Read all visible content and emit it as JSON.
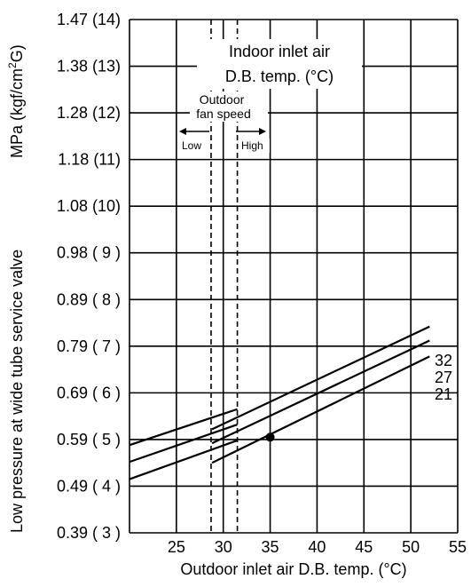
{
  "chart_data": {
    "type": "line",
    "ylabel": "Low pressure at wide tube service valve",
    "ylabel_unit_prefix": "MPa (kgf/cm",
    "ylabel_unit_superscript": "2",
    "ylabel_unit_suffix": "G)",
    "xlabel": "Outdoor inlet air D.B. temp. (°C)",
    "xlim": [
      20,
      55
    ],
    "ylim": [
      3,
      14
    ],
    "x_ticks": [
      25,
      30,
      35,
      40,
      45,
      50,
      55
    ],
    "y_ticks": [
      {
        "value": 3,
        "label": "0.39 ( 3 )"
      },
      {
        "value": 4,
        "label": "0.49 ( 4 )"
      },
      {
        "value": 5,
        "label": "0.59 ( 5 )"
      },
      {
        "value": 6,
        "label": "0.69 ( 6 )"
      },
      {
        "value": 7,
        "label": "0.79 ( 7 )"
      },
      {
        "value": 8,
        "label": "0.89 ( 8 )"
      },
      {
        "value": 9,
        "label": "0.98 ( 9 )"
      },
      {
        "value": 10,
        "label": "1.08 (10)"
      },
      {
        "value": 11,
        "label": "1.18 (11)"
      },
      {
        "value": 12,
        "label": "1.28 (12)"
      },
      {
        "value": 13,
        "label": "1.38 (13)"
      },
      {
        "value": 14,
        "label": "1.47 (14)"
      }
    ],
    "series": [
      {
        "name": "32",
        "segments": [
          {
            "x": [
              20,
              31.5
            ],
            "y": [
              4.88,
              5.65
            ]
          },
          {
            "x": [
              28.8,
              52.0
            ],
            "y": [
              5.22,
              7.42
            ]
          }
        ]
      },
      {
        "name": "27",
        "segments": [
          {
            "x": [
              20,
              31.5
            ],
            "y": [
              4.52,
              5.32
            ]
          },
          {
            "x": [
              28.8,
              52.0
            ],
            "y": [
              4.92,
              7.12
            ]
          }
        ]
      },
      {
        "name": "21",
        "segments": [
          {
            "x": [
              20,
              31.5
            ],
            "y": [
              4.15,
              4.98
            ]
          },
          {
            "x": [
              28.8,
              52.0
            ],
            "y": [
              4.5,
              6.78
            ]
          }
        ]
      }
    ],
    "marker": {
      "x": 35,
      "y": 5.05
    },
    "fan_speed_lines": [
      28.7,
      31.5
    ],
    "annotations": {
      "indoor_line1": "Indoor inlet air",
      "indoor_line2": "D.B. temp. (°C)",
      "outdoor_line1": "Outdoor",
      "outdoor_line2": "fan speed",
      "low": "Low",
      "high": "High"
    },
    "grid": true
  }
}
